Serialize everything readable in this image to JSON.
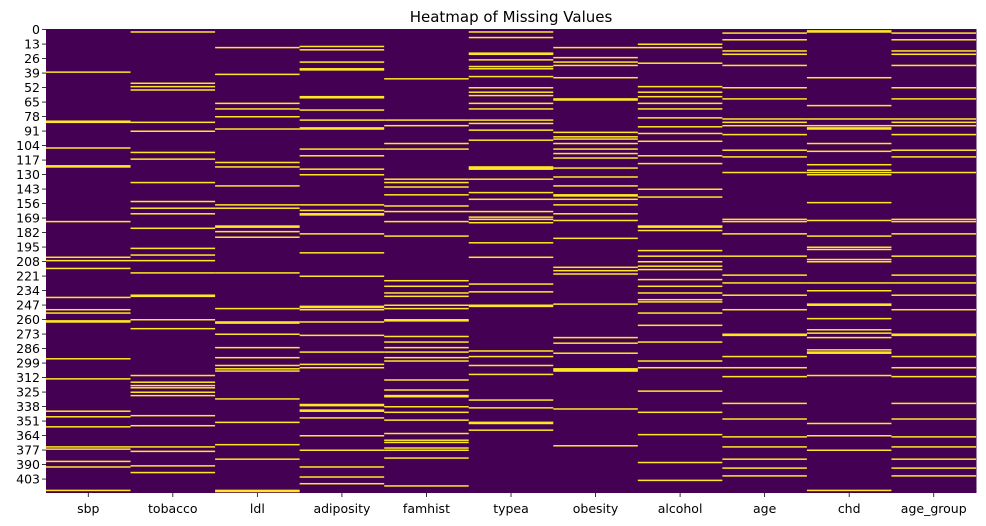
{
  "chart_data": {
    "type": "heatmap",
    "title": "Heatmap of Missing Values",
    "columns": [
      "sbp",
      "tobacco",
      "ldl",
      "adiposity",
      "famhist",
      "typea",
      "obesity",
      "alcohol",
      "age",
      "chd",
      "age_group"
    ],
    "y_tick_labels": [
      "0",
      "13",
      "26",
      "39",
      "52",
      "65",
      "78",
      "91",
      "104",
      "117",
      "130",
      "143",
      "156",
      "169",
      "182",
      "195",
      "208",
      "221",
      "234",
      "247",
      "260",
      "273",
      "286",
      "299",
      "312",
      "325",
      "338",
      "351",
      "364",
      "377",
      "390",
      "403"
    ],
    "n_rows": 416,
    "colors": {
      "present": "#440154",
      "missing": "#fde725"
    },
    "missing_rows": {
      "sbp": [
        38,
        82,
        83,
        106,
        122,
        123,
        172,
        204,
        207,
        214,
        240,
        251,
        254,
        261,
        262,
        295,
        313,
        342,
        347,
        356,
        374,
        376,
        387,
        392,
        413
      ],
      "tobacco": [
        2,
        48,
        51,
        54,
        83,
        91,
        110,
        116,
        137,
        154,
        160,
        165,
        178,
        196,
        202,
        207,
        218,
        238,
        239,
        260,
        268,
        310,
        316,
        319,
        321,
        325,
        328,
        346,
        355,
        374,
        378,
        391,
        397
      ],
      "ldl": [
        16,
        40,
        66,
        71,
        78,
        89,
        119,
        123,
        140,
        157,
        160,
        176,
        177,
        181,
        186,
        218,
        250,
        262,
        263,
        273,
        285,
        294,
        301,
        304,
        306,
        331,
        352,
        372,
        385,
        413,
        414
      ],
      "adiposity": [
        15,
        18,
        29,
        35,
        36,
        60,
        61,
        72,
        81,
        88,
        89,
        107,
        113,
        125,
        130,
        157,
        162,
        165,
        166,
        183,
        200,
        221,
        248,
        249,
        251,
        262,
        274,
        289,
        300,
        303,
        336,
        337,
        341,
        342,
        348,
        364,
        377,
        392,
        401,
        407
      ],
      "famhist": [
        44,
        81,
        86,
        102,
        107,
        134,
        137,
        141,
        148,
        158,
        163,
        172,
        185,
        225,
        230,
        236,
        239,
        247,
        250,
        260,
        261,
        275,
        280,
        285,
        289,
        294,
        297,
        314,
        323,
        328,
        329,
        338,
        343,
        350,
        362,
        368,
        370,
        375,
        377,
        384,
        409
      ],
      "typea": [
        2,
        7,
        21,
        22,
        27,
        33,
        35,
        42,
        52,
        56,
        59,
        66,
        71,
        81,
        84,
        90,
        99,
        123,
        124,
        125,
        134,
        146,
        152,
        163,
        168,
        170,
        173,
        191,
        204,
        228,
        235,
        247,
        248,
        288,
        293,
        301,
        309,
        332,
        339,
        352,
        353,
        359
      ],
      "obesity": [
        16,
        25,
        29,
        32,
        43,
        62,
        63,
        92,
        96,
        98,
        102,
        107,
        111,
        115,
        124,
        132,
        140,
        148,
        149,
        152,
        157,
        165,
        171,
        187,
        213,
        216,
        219,
        246,
        276,
        281,
        290,
        304,
        305,
        306,
        340,
        373
      ],
      "alcohol": [
        13,
        16,
        30,
        51,
        56,
        60,
        66,
        71,
        79,
        87,
        93,
        100,
        113,
        120,
        143,
        150,
        176,
        177,
        180,
        198,
        203,
        208,
        212,
        215,
        224,
        230,
        236,
        242,
        244,
        254,
        265,
        280,
        297,
        303,
        324,
        343,
        363,
        388,
        404
      ],
      "age": [
        3,
        9,
        19,
        22,
        32,
        52,
        62,
        80,
        83,
        86,
        94,
        108,
        114,
        128,
        170,
        172,
        183,
        203,
        220,
        227,
        238,
        251,
        273,
        274,
        293,
        303,
        311,
        335,
        349,
        365,
        374,
        385,
        393,
        400
      ],
      "chd": [
        1,
        2,
        43,
        68,
        80,
        86,
        88,
        89,
        102,
        109,
        121,
        126,
        128,
        130,
        155,
        171,
        185,
        195,
        197,
        206,
        208,
        227,
        234,
        246,
        247,
        259,
        269,
        272,
        276,
        287,
        289,
        290,
        310,
        353,
        364,
        377,
        413
      ],
      "age_group": [
        3,
        9,
        19,
        22,
        32,
        52,
        62,
        80,
        83,
        86,
        94,
        108,
        114,
        128,
        170,
        172,
        183,
        203,
        220,
        227,
        238,
        251,
        273,
        274,
        293,
        303,
        311,
        335,
        349,
        365,
        374,
        385,
        393,
        400
      ]
    }
  }
}
